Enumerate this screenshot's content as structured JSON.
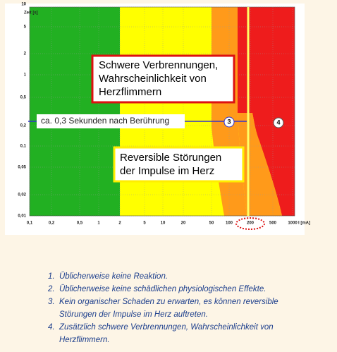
{
  "figure": {
    "y_axis_title": "Zeit [s]",
    "x_axis_title": "I [mA]",
    "x_ticks": [
      "0,1",
      "0,2",
      "0,5",
      "1",
      "2",
      "5",
      "10",
      "20",
      "50",
      "100",
      "200",
      "500",
      "1000"
    ],
    "y_ticks": [
      "10",
      "5",
      "2",
      "1",
      "0,5",
      "0,2",
      "0,1",
      "0,05",
      "0,02",
      "0,01"
    ],
    "time_label": "ca. 0,3 Sekunden nach Berührung",
    "zone_markers": [
      "3",
      "4"
    ],
    "box_severe": [
      "Schwere Verbrennungen,",
      "Wahrscheinlichkeit von",
      "Herzflimmern"
    ],
    "box_reversible": [
      "Reversible Störungen",
      "der Impulse im Herz"
    ]
  },
  "list": {
    "items": [
      {
        "marker": "1.",
        "lines": [
          "Üblicherweise keine Reaktion."
        ]
      },
      {
        "marker": "2.",
        "lines": [
          "Üblicherweise keine schädlichen physiologischen Effekte."
        ]
      },
      {
        "marker": "3.",
        "lines": [
          "Kein organischer Schaden zu erwarten, es können reversible",
          "Störungen der Impulse im Herz auftreten."
        ]
      },
      {
        "marker": "4.",
        "lines": [
          "Zusätzlich schwere Verbrennungen, Wahrscheinlichkeit von",
          "Herzflimmern."
        ]
      }
    ]
  }
}
